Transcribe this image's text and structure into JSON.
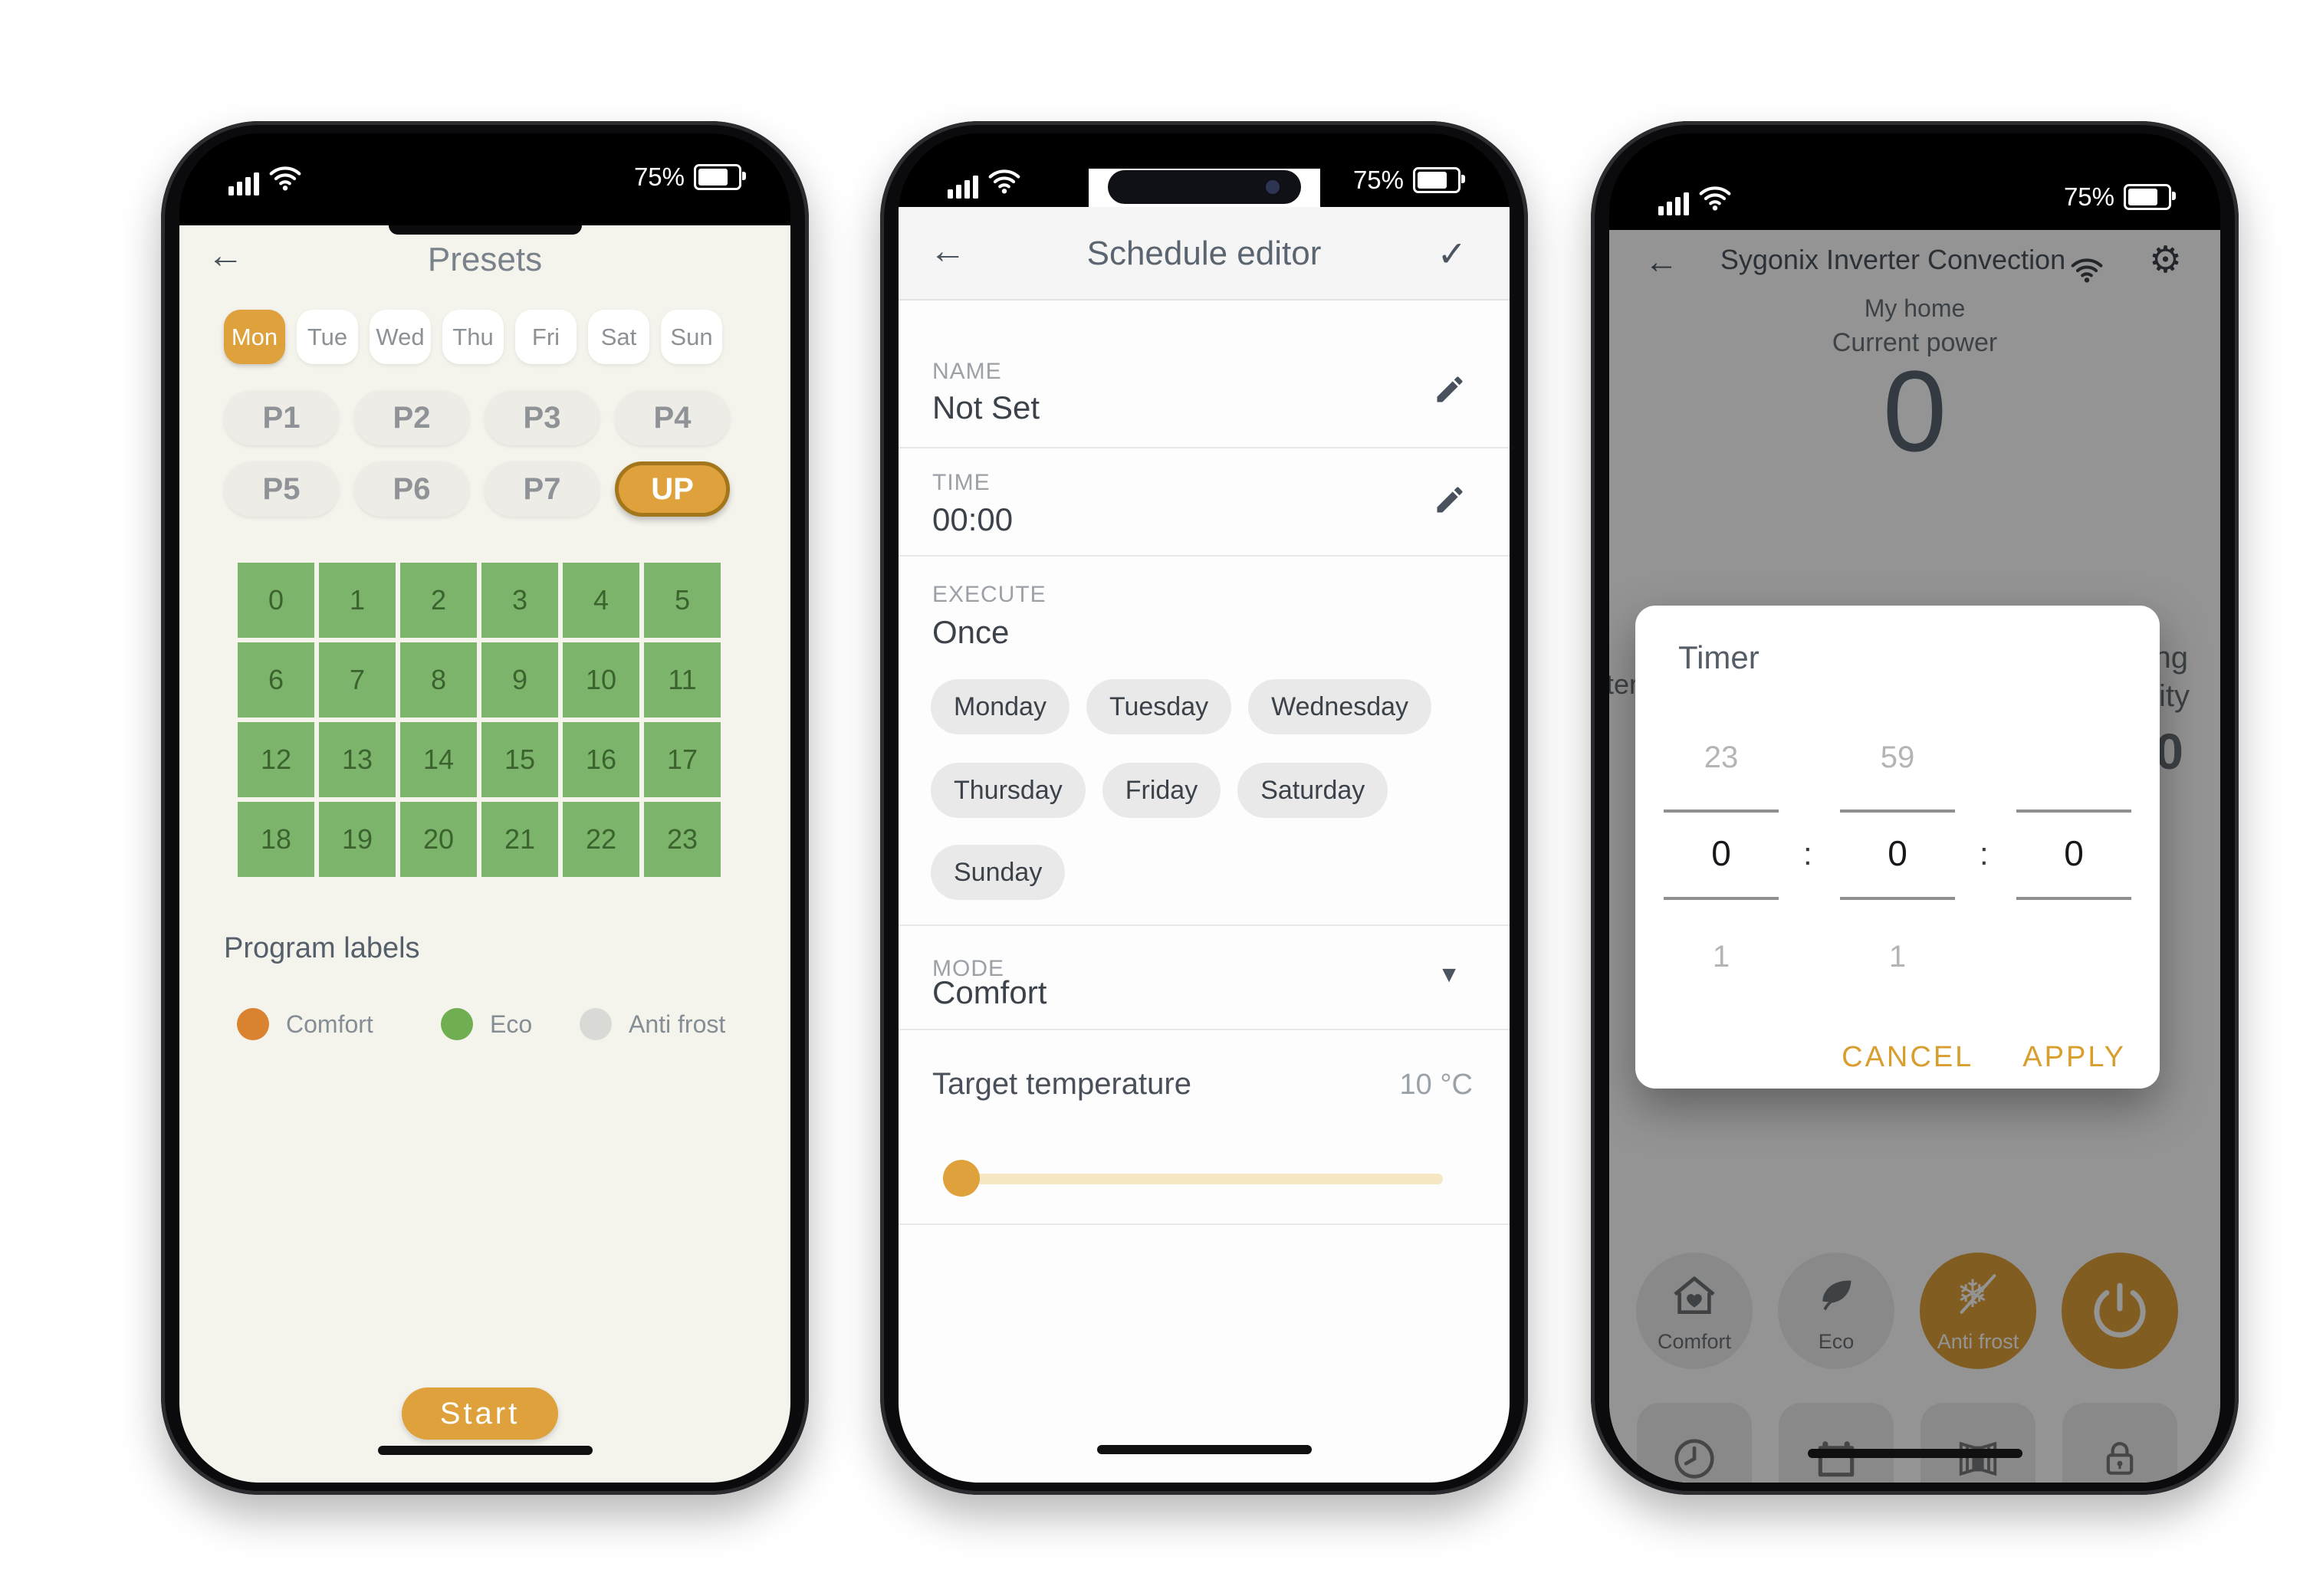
{
  "colors": {
    "amber": "#DFA13B",
    "amber_dark": "#A3761B",
    "grid_green": "#7DB46C",
    "grid_green_text": "#3A632E",
    "legend_comfort": "#D9822F",
    "legend_eco": "#6FAF52",
    "legend_antifrost": "#D9D9D6"
  },
  "status": {
    "battery_percent": "75%"
  },
  "phone1": {
    "title": "Presets",
    "days": [
      {
        "label": "Mon",
        "selected": true
      },
      {
        "label": "Tue",
        "selected": false
      },
      {
        "label": "Wed",
        "selected": false
      },
      {
        "label": "Thu",
        "selected": false
      },
      {
        "label": "Fri",
        "selected": false
      },
      {
        "label": "Sat",
        "selected": false
      },
      {
        "label": "Sun",
        "selected": false
      }
    ],
    "presets": [
      "P1",
      "P2",
      "P3",
      "P4",
      "P5",
      "P6",
      "P7"
    ],
    "up_label": "UP",
    "hours": [
      "0",
      "1",
      "2",
      "3",
      "4",
      "5",
      "6",
      "7",
      "8",
      "9",
      "10",
      "11",
      "12",
      "13",
      "14",
      "15",
      "16",
      "17",
      "18",
      "19",
      "20",
      "21",
      "22",
      "23"
    ],
    "program_labels_title": "Program labels",
    "legend": [
      {
        "label": "Comfort",
        "color": "#D9822F"
      },
      {
        "label": "Eco",
        "color": "#6FAF52"
      },
      {
        "label": "Anti frost",
        "color": "#D9D9D6"
      }
    ],
    "start_label": "Start"
  },
  "phone2": {
    "title": "Schedule editor",
    "name": {
      "label": "NAME",
      "value": "Not Set"
    },
    "time": {
      "label": "TIME",
      "value": "00:00"
    },
    "execute": {
      "label": "EXECUTE",
      "value": "Once"
    },
    "week_days": [
      "Monday",
      "Tuesday",
      "Wednesday",
      "Thursday",
      "Friday",
      "Saturday",
      "Sunday"
    ],
    "mode": {
      "label": "MODE",
      "value": "Comfort"
    },
    "target": {
      "label": "Target temperature",
      "value": "10 °C",
      "slider_percent": 0
    }
  },
  "phone3": {
    "title": "Sygonix Inverter Convection",
    "subtitle": "My home",
    "power_label": "Current power",
    "power_value": "0",
    "background_fragments": {
      "left": "tem",
      "right_top": "ng",
      "right_mid": "ity",
      "right_value": "0"
    },
    "dialog": {
      "title": "Timer",
      "pickers": [
        {
          "above": "23",
          "value": "0",
          "below": "1"
        },
        {
          "above": "59",
          "value": "0",
          "below": "1"
        },
        {
          "above": "",
          "value": "0",
          "below": ""
        }
      ],
      "cancel_label": "CANCEL",
      "apply_label": "APPLY"
    },
    "mode_buttons": [
      {
        "label": "Comfort",
        "icon": "house-heart-icon",
        "active": false
      },
      {
        "label": "Eco",
        "icon": "leaf-icon",
        "active": false
      },
      {
        "label": "Anti frost",
        "icon": "snowflake-off-icon",
        "active": true
      },
      {
        "label": "",
        "icon": "power-icon",
        "active": true
      }
    ],
    "tool_buttons": [
      "clock-icon",
      "calendar-icon",
      "window-icon",
      "lock-icon"
    ]
  }
}
